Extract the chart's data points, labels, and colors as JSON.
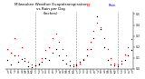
{
  "title": "Milwaukee Weather Evapotranspiration  vs Rain per Day  (Inches)",
  "title_fontsize": 3.2,
  "background_color": "#ffffff",
  "et_color": "#ff0000",
  "rain_color": "#000000",
  "legend_blue_color": "#0000ff",
  "ylim": [
    0,
    0.52
  ],
  "yticks": [
    0.0,
    0.1,
    0.2,
    0.3,
    0.4,
    0.5
  ],
  "marker_size": 0.9,
  "grid_color": "#888888",
  "x_labels": [
    "5",
    "6",
    "7",
    "8",
    "9",
    "10",
    "11",
    "12",
    "1",
    "2",
    "3",
    "4",
    "5",
    "6",
    "7",
    "8",
    "9",
    "10",
    "11",
    "12",
    "1",
    "2",
    "3",
    "4",
    "5",
    "6",
    "7",
    "8",
    "9",
    "10",
    "11",
    "12",
    "1",
    "2",
    "3",
    "4",
    "5"
  ],
  "et_values": [
    0.18,
    0.15,
    0.28,
    0.12,
    0.2,
    0.1,
    0.06,
    0.04,
    0.03,
    0.05,
    0.1,
    0.17,
    0.2,
    0.28,
    0.32,
    0.25,
    0.18,
    0.12,
    0.07,
    0.04,
    0.03,
    0.05,
    0.09,
    0.18,
    0.25,
    0.35,
    0.42,
    0.38,
    0.28,
    0.18,
    0.1,
    0.05,
    0.04,
    0.07,
    0.13,
    0.2,
    0.27
  ],
  "rain_values": [
    0.08,
    0.04,
    0.12,
    0.06,
    0.09,
    0.07,
    0.02,
    0.01,
    0.03,
    0.04,
    0.06,
    0.1,
    0.08,
    0.15,
    0.18,
    0.12,
    0.08,
    0.05,
    0.03,
    0.02,
    0.04,
    0.06,
    0.08,
    0.12,
    0.18,
    0.28,
    0.48,
    0.36,
    0.2,
    0.08,
    0.04,
    0.03,
    0.02,
    0.05,
    0.08,
    0.12,
    0.17
  ],
  "vlines": [
    8,
    20,
    32
  ],
  "xtick_fontsize": 2.2,
  "ytick_fontsize": 2.2
}
